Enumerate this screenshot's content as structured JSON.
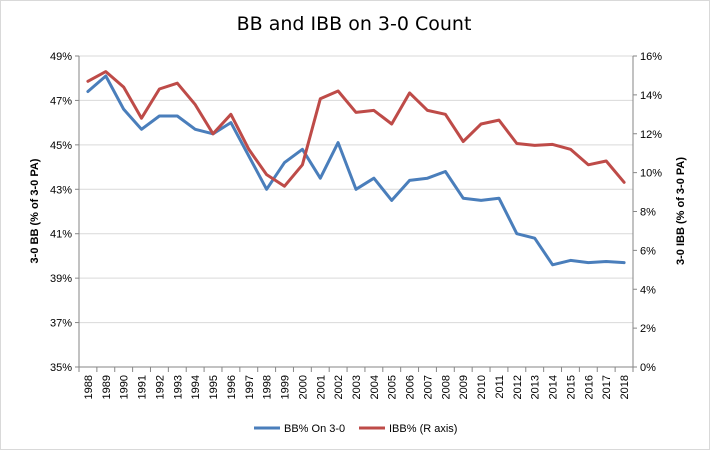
{
  "chart_data": {
    "type": "line",
    "title": "BB and IBB on 3-0 Count",
    "ylabel_left": "3-0 BB (% of 3-0 PA)",
    "ylabel_right": "3-0 IBB (% of 3-0 PA)",
    "x": [
      "1988",
      "1989",
      "1990",
      "1991",
      "1992",
      "1993",
      "1994",
      "1995",
      "1996",
      "1997",
      "1998",
      "1999",
      "2000",
      "2001",
      "2002",
      "2003",
      "2004",
      "2005",
      "2006",
      "2007",
      "2008",
      "2009",
      "2010",
      "2011",
      "2012",
      "2013",
      "2014",
      "2015",
      "2016",
      "2017",
      "2018"
    ],
    "ylim_left": [
      35,
      49
    ],
    "yticks_left": [
      "35%",
      "37%",
      "39%",
      "41%",
      "43%",
      "45%",
      "47%",
      "49%"
    ],
    "ylim_right": [
      0,
      16
    ],
    "yticks_right": [
      "0%",
      "2%",
      "4%",
      "6%",
      "8%",
      "10%",
      "12%",
      "14%",
      "16%"
    ],
    "series": [
      {
        "name": "BB% On 3-0",
        "axis": "left",
        "color": "#4a7ebb",
        "values": [
          47.4,
          48.1,
          46.6,
          45.7,
          46.3,
          46.3,
          45.7,
          45.5,
          46.0,
          44.5,
          43.0,
          44.2,
          44.8,
          43.5,
          45.1,
          43.0,
          43.5,
          42.5,
          43.4,
          43.5,
          43.8,
          42.6,
          42.5,
          42.6,
          41.0,
          40.8,
          39.6,
          39.8,
          39.7,
          39.75,
          39.7
        ]
      },
      {
        "name": "IBB% (R axis)",
        "axis": "right",
        "color": "#be4b48",
        "values": [
          14.7,
          15.2,
          14.4,
          12.8,
          14.3,
          14.6,
          13.5,
          12.0,
          13.0,
          11.2,
          9.9,
          9.3,
          10.4,
          13.8,
          14.2,
          13.1,
          13.2,
          12.5,
          14.1,
          13.2,
          13.0,
          11.6,
          12.5,
          12.7,
          11.5,
          11.4,
          11.45,
          11.2,
          10.4,
          10.6,
          9.5
        ]
      }
    ],
    "grid": "horizontal",
    "legend": "bottom"
  }
}
